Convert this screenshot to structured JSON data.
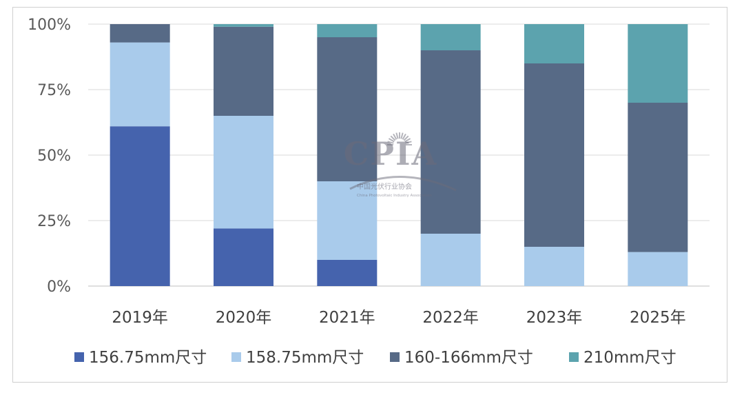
{
  "chart_data": {
    "type": "bar",
    "stacked": true,
    "percent": true,
    "categories": [
      "2019年",
      "2020年",
      "2021年",
      "2022年",
      "2023年",
      "2025年"
    ],
    "series": [
      {
        "name": "156.75mm尺寸",
        "color": "#4563ad",
        "values": [
          61,
          22,
          10,
          0,
          0,
          0
        ]
      },
      {
        "name": "158.75mm尺寸",
        "color": "#a9cbeb",
        "values": [
          32,
          43,
          30,
          20,
          15,
          13
        ]
      },
      {
        "name": "160-166mm尺寸",
        "color": "#576a86",
        "values": [
          7,
          34,
          55,
          70,
          70,
          57
        ]
      },
      {
        "name": "210mm尺寸",
        "color": "#5ca3ae",
        "values": [
          0,
          1,
          5,
          10,
          15,
          30
        ]
      }
    ],
    "ylim": [
      0,
      100
    ],
    "yticks": [
      "0%",
      "25%",
      "50%",
      "75%",
      "100%"
    ],
    "grid": true,
    "legend_position": "bottom"
  },
  "watermark": {
    "logo": "CPIA",
    "org_name": "中国光伏行业协会",
    "org_name_en": "China Photovoltaic Industry Association"
  }
}
